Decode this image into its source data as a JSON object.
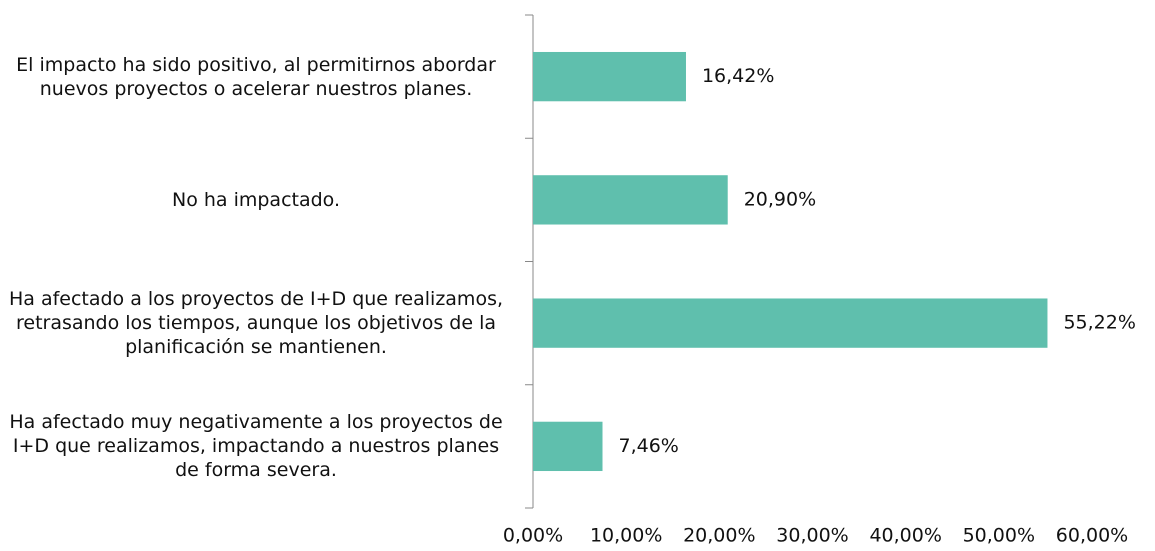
{
  "chart_data": {
    "type": "barh",
    "categories": [
      "El impacto ha sido positivo, al permitirnos abordar nuevos proyectos o acelerar nuestros planes.",
      "No ha impactado.",
      "Ha afectado a los proyectos de I+D que realizamos, retrasando los tiempos, aunque los objetivos de la planificación se mantienen.",
      "Ha afectado muy negativamente a los proyectos de I+D que realizamos, impactando a nuestros planes de forma severa."
    ],
    "values": [
      16.42,
      20.9,
      55.22,
      7.46
    ],
    "value_labels": [
      "16,42%",
      "20,90%",
      "55,22%",
      "7,46%"
    ],
    "color": "#5fbfad",
    "xlim": [
      0,
      60
    ],
    "xticks": [
      {
        "value": 0,
        "label": "0,00%"
      },
      {
        "value": 10,
        "label": "10,00%"
      },
      {
        "value": 20,
        "label": "20,00%"
      },
      {
        "value": 30,
        "label": "30,00%"
      },
      {
        "value": 40,
        "label": "40,00%"
      },
      {
        "value": 50,
        "label": "50,00%"
      },
      {
        "value": 60,
        "label": "60,00%"
      }
    ],
    "grid": false
  }
}
